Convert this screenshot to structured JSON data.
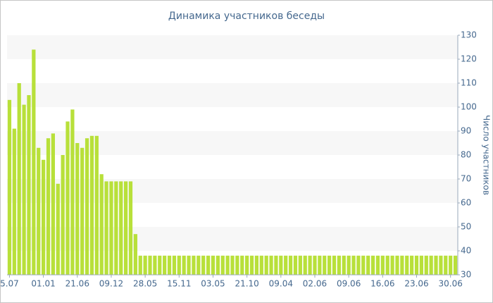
{
  "chart_data": {
    "type": "bar",
    "title": "Динамика участников беседы",
    "y_label": "Число участников",
    "categories": [
      "5.07",
      null,
      null,
      null,
      null,
      null,
      null,
      "01.01",
      null,
      null,
      null,
      null,
      null,
      null,
      "21.06",
      null,
      null,
      null,
      null,
      null,
      null,
      "09.12",
      null,
      null,
      null,
      null,
      null,
      null,
      "28.05",
      null,
      null,
      null,
      null,
      null,
      null,
      "15.11",
      null,
      null,
      null,
      null,
      null,
      null,
      "03.05",
      null,
      null,
      null,
      null,
      null,
      null,
      "21.10",
      null,
      null,
      null,
      null,
      null,
      null,
      "09.04",
      null,
      null,
      null,
      null,
      null,
      null,
      "02.06",
      null,
      null,
      null,
      null,
      null,
      null,
      "09.06",
      null,
      null,
      null,
      null,
      null,
      null,
      "16.06",
      null,
      null,
      null,
      null,
      null,
      null,
      "23.06",
      null,
      null,
      null,
      null,
      null,
      null,
      "30.06",
      null
    ],
    "values": [
      103,
      91,
      110,
      101,
      105,
      124,
      83,
      78,
      87,
      89,
      68,
      80,
      94,
      99,
      85,
      83,
      87,
      88,
      88,
      72,
      69,
      69,
      69,
      69,
      69,
      69,
      47,
      38,
      38,
      38,
      38,
      38,
      38,
      38,
      38,
      38,
      38,
      38,
      38,
      38,
      38,
      38,
      38,
      38,
      38,
      38,
      38,
      38,
      38,
      38,
      38,
      38,
      38,
      38,
      38,
      38,
      38,
      38,
      38,
      38,
      38,
      38,
      38,
      38,
      38,
      38,
      38,
      38,
      38,
      38,
      38,
      38,
      38,
      38,
      38,
      38,
      38,
      38,
      38,
      38,
      38,
      38,
      38,
      38,
      38,
      38,
      38,
      38,
      38,
      38,
      38,
      38,
      38
    ],
    "color": "#b8e03a",
    "ylim": [
      30,
      130
    ],
    "yticks": [
      30,
      40,
      50,
      60,
      70,
      80,
      90,
      100,
      110,
      120,
      130
    ],
    "grid": true
  }
}
